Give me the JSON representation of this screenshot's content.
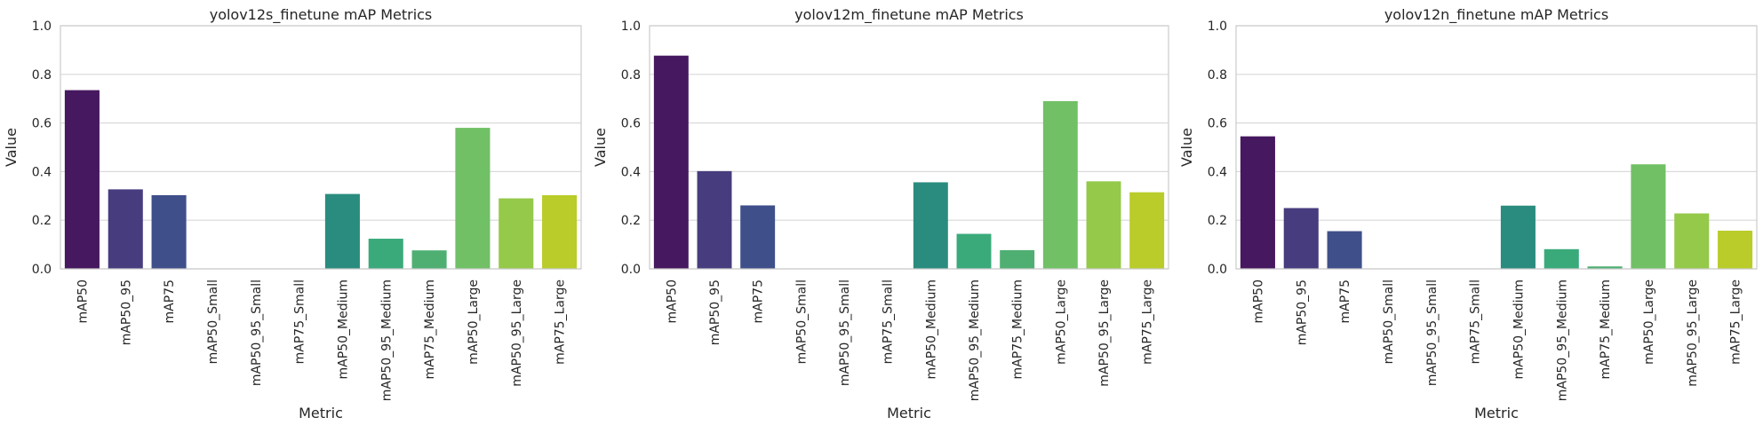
{
  "chart_data": [
    {
      "type": "bar",
      "title": "yolov12s_finetune mAP Metrics",
      "xlabel": "Metric",
      "ylabel": "Value",
      "ylim": [
        0,
        1.0
      ],
      "yticks": [
        "0.0",
        "0.2",
        "0.4",
        "0.6",
        "0.8",
        "1.0"
      ],
      "grid": true,
      "categories": [
        "mAP50",
        "mAP50_95",
        "mAP75",
        "mAP50_Small",
        "mAP50_95_Small",
        "mAP75_Small",
        "mAP50_Medium",
        "mAP50_95_Medium",
        "mAP75_Medium",
        "mAP50_Large",
        "mAP50_95_Large",
        "mAP75_Large"
      ],
      "values": [
        0.735,
        0.327,
        0.303,
        0.0,
        0.0,
        0.0,
        0.308,
        0.124,
        0.076,
        0.58,
        0.29,
        0.303
      ]
    },
    {
      "type": "bar",
      "title": "yolov12m_finetune mAP Metrics",
      "xlabel": "Metric",
      "ylabel": "Value",
      "ylim": [
        0,
        1.0
      ],
      "yticks": [
        "0.0",
        "0.2",
        "0.4",
        "0.6",
        "0.8",
        "1.0"
      ],
      "grid": true,
      "categories": [
        "mAP50",
        "mAP50_95",
        "mAP75",
        "mAP50_Small",
        "mAP50_95_Small",
        "mAP75_Small",
        "mAP50_Medium",
        "mAP50_95_Medium",
        "mAP75_Medium",
        "mAP50_Large",
        "mAP50_95_Large",
        "mAP75_Large"
      ],
      "values": [
        0.877,
        0.402,
        0.261,
        0.0,
        0.0,
        0.0,
        0.356,
        0.144,
        0.077,
        0.69,
        0.36,
        0.315
      ]
    },
    {
      "type": "bar",
      "title": "yolov12n_finetune mAP Metrics",
      "xlabel": "Metric",
      "ylabel": "Value",
      "ylim": [
        0,
        1.0
      ],
      "yticks": [
        "0.0",
        "0.2",
        "0.4",
        "0.6",
        "0.8",
        "1.0"
      ],
      "grid": true,
      "categories": [
        "mAP50",
        "mAP50_95",
        "mAP75",
        "mAP50_Small",
        "mAP50_95_Small",
        "mAP75_Small",
        "mAP50_Medium",
        "mAP50_95_Medium",
        "mAP75_Medium",
        "mAP50_Large",
        "mAP50_95_Large",
        "mAP75_Large"
      ],
      "values": [
        0.545,
        0.25,
        0.155,
        0.0,
        0.0,
        0.0,
        0.26,
        0.081,
        0.01,
        0.43,
        0.228,
        0.157
      ]
    }
  ],
  "palette": [
    "#46185f",
    "#473c7e",
    "#3f4f8a",
    "#35648d",
    "#2c768e",
    "#248a8d",
    "#2a8c7e",
    "#3aaa7b",
    "#4faf73",
    "#71c066",
    "#94c94a",
    "#b9cc2a"
  ]
}
